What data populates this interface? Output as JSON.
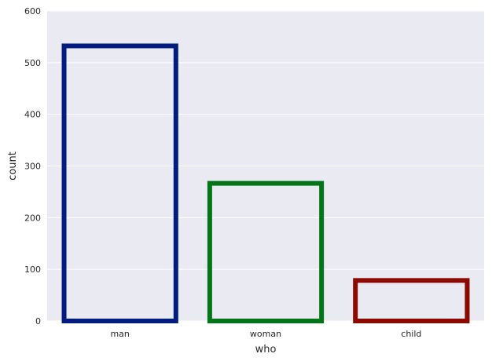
{
  "chart_data": {
    "type": "bar",
    "categories": [
      "man",
      "woman",
      "child"
    ],
    "values": [
      537,
      271,
      83
    ],
    "xlabel": "who",
    "ylabel": "count",
    "ylim": [
      0,
      600
    ],
    "yticks": [
      0,
      100,
      200,
      300,
      400,
      500,
      600
    ],
    "grid": true,
    "bar_style": "outline",
    "colors": [
      "#001c7f",
      "#017517",
      "#8c0900"
    ],
    "plot_background": "#eaeaf2",
    "grid_color": "#ffffff"
  }
}
